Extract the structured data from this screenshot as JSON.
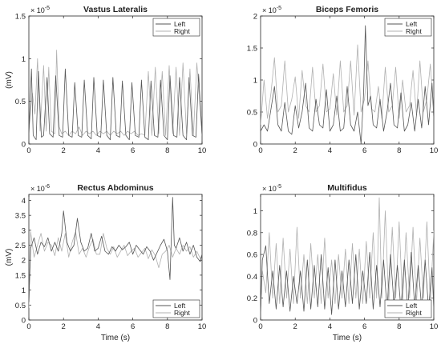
{
  "chart_data": [
    {
      "type": "line",
      "title": "Vastus Lateralis",
      "ylabel": "(mV)",
      "xlabel": "",
      "multiplier": "× 10",
      "exponent": "-5",
      "xlim": [
        0,
        10
      ],
      "ylim": [
        0,
        1.5
      ],
      "xticks": [
        "0",
        "2",
        "4",
        "6",
        "8",
        "10"
      ],
      "yticks": [
        "0",
        "0.5",
        "1",
        "1.5"
      ],
      "legend_position": "top-right",
      "series": [
        {
          "name": "Left",
          "color": "#555555",
          "x": [
            0,
            0.15,
            0.25,
            0.42,
            0.55,
            0.72,
            0.85,
            1.05,
            1.2,
            1.4,
            1.55,
            1.75,
            1.95,
            2.1,
            2.3,
            2.5,
            2.65,
            2.85,
            3.05,
            3.2,
            3.4,
            3.6,
            3.75,
            3.95,
            4.15,
            4.3,
            4.5,
            4.7,
            4.85,
            5.05,
            5.25,
            5.4,
            5.6,
            5.8,
            5.95,
            6.15,
            6.35,
            6.5,
            6.7,
            6.9,
            7.05,
            7.25,
            7.45,
            7.6,
            7.8,
            8.0,
            8.15,
            8.35,
            8.55,
            8.7,
            8.9,
            9.1,
            9.25,
            9.45,
            9.65,
            9.8,
            10
          ],
          "y": [
            0.1,
            0.88,
            0.1,
            0.05,
            0.85,
            0.08,
            0.1,
            0.78,
            0.12,
            0.08,
            0.8,
            0.1,
            0.08,
            0.88,
            0.1,
            0.08,
            0.72,
            0.1,
            0.08,
            0.75,
            0.1,
            0.06,
            0.78,
            0.1,
            0.08,
            0.75,
            0.1,
            0.05,
            0.78,
            0.1,
            0.08,
            0.74,
            0.1,
            0.05,
            0.72,
            0.1,
            0.08,
            0.75,
            0.08,
            0.05,
            0.74,
            0.1,
            0.08,
            0.75,
            0.1,
            0.05,
            0.8,
            0.1,
            0.08,
            0.78,
            0.1,
            0.05,
            0.78,
            0.1,
            0.08,
            0.82,
            0.1
          ]
        },
        {
          "name": "Right",
          "color": "#b0b0b0",
          "x": [
            0,
            0.2,
            0.35,
            0.5,
            0.65,
            0.85,
            1.0,
            1.15,
            1.3,
            1.5,
            1.6,
            1.75,
            1.9,
            2.1,
            2.3,
            2.5,
            2.7,
            2.9,
            3.1,
            3.3,
            3.5,
            3.7,
            3.9,
            4.1,
            4.3,
            4.5,
            4.7,
            4.9,
            5.1,
            5.3,
            5.5,
            5.7,
            5.9,
            6.1,
            6.3,
            6.5,
            6.7,
            6.9,
            7.1,
            7.3,
            7.5,
            7.7,
            7.9,
            8.1,
            8.3,
            8.5,
            8.7,
            8.9,
            9.1,
            9.3,
            9.5,
            9.7,
            10
          ],
          "y": [
            0.15,
            0.6,
            0.35,
            1.0,
            0.15,
            0.92,
            0.15,
            0.9,
            0.15,
            0.12,
            1.1,
            0.2,
            0.12,
            0.15,
            0.1,
            0.15,
            0.12,
            0.2,
            0.1,
            0.15,
            0.12,
            0.15,
            0.1,
            0.15,
            0.12,
            0.15,
            0.1,
            0.15,
            0.12,
            0.15,
            0.1,
            0.15,
            0.12,
            0.15,
            0.1,
            0.12,
            0.1,
            0.85,
            0.1,
            0.9,
            0.12,
            0.85,
            0.1,
            0.92,
            0.12,
            0.9,
            0.1,
            0.95,
            0.12,
            0.88,
            0.1,
            0.95,
            0.1
          ]
        }
      ]
    },
    {
      "type": "line",
      "title": "Biceps Femoris",
      "ylabel": "",
      "xlabel": "",
      "multiplier": "× 10",
      "exponent": "-5",
      "xlim": [
        0,
        10
      ],
      "ylim": [
        0,
        2
      ],
      "xticks": [
        "0",
        "2",
        "4",
        "6",
        "8",
        "10"
      ],
      "yticks": [
        "0",
        "0.5",
        "1",
        "1.5",
        "2"
      ],
      "legend_position": "top-right",
      "series": [
        {
          "name": "Left",
          "color": "#555555",
          "x": [
            0,
            0.2,
            0.4,
            0.6,
            0.8,
            1.0,
            1.2,
            1.4,
            1.6,
            1.8,
            2.0,
            2.2,
            2.4,
            2.6,
            2.8,
            3.0,
            3.2,
            3.4,
            3.6,
            3.8,
            4.0,
            4.2,
            4.4,
            4.6,
            4.8,
            5.0,
            5.2,
            5.4,
            5.6,
            5.8,
            5.95,
            6.05,
            6.2,
            6.35,
            6.5,
            6.7,
            6.9,
            7.1,
            7.3,
            7.5,
            7.7,
            7.9,
            8.1,
            8.3,
            8.5,
            8.7,
            8.9,
            9.1,
            9.3,
            9.5,
            9.7,
            9.9,
            10
          ],
          "y": [
            0.2,
            0.3,
            0.2,
            0.55,
            0.9,
            0.3,
            0.2,
            0.65,
            0.2,
            0.15,
            0.6,
            0.25,
            0.5,
            0.95,
            0.25,
            0.2,
            0.7,
            0.3,
            0.25,
            0.85,
            0.2,
            0.3,
            0.75,
            0.2,
            0.25,
            0.9,
            0.3,
            0.2,
            0.5,
            0.0,
            0.8,
            1.85,
            0.6,
            0.75,
            0.3,
            0.25,
            0.7,
            0.2,
            0.5,
            0.95,
            0.3,
            0.25,
            0.8,
            0.2,
            0.3,
            0.65,
            0.2,
            0.7,
            0.25,
            0.9,
            0.3,
            0.95,
            0.4
          ]
        },
        {
          "name": "Right",
          "color": "#b0b0b0",
          "x": [
            0,
            0.2,
            0.4,
            0.6,
            0.8,
            1.0,
            1.2,
            1.4,
            1.6,
            1.8,
            2.0,
            2.2,
            2.4,
            2.6,
            2.8,
            3.0,
            3.2,
            3.4,
            3.6,
            3.8,
            4.0,
            4.2,
            4.4,
            4.6,
            4.8,
            5.0,
            5.2,
            5.4,
            5.6,
            5.8,
            6.0,
            6.2,
            6.4,
            6.6,
            6.8,
            7.0,
            7.2,
            7.4,
            7.6,
            7.8,
            8.0,
            8.2,
            8.4,
            8.6,
            8.8,
            9.0,
            9.2,
            9.4,
            9.6,
            9.8,
            10
          ],
          "y": [
            0.3,
            1.0,
            0.4,
            0.8,
            1.35,
            0.5,
            0.6,
            1.3,
            0.5,
            0.7,
            1.05,
            0.4,
            1.15,
            0.6,
            0.5,
            1.2,
            0.5,
            0.6,
            1.25,
            0.5,
            0.55,
            1.1,
            0.45,
            1.3,
            0.5,
            0.6,
            1.3,
            0.45,
            1.55,
            0.5,
            0.7,
            1.3,
            0.55,
            0.5,
            0.9,
            0.4,
            1.2,
            0.5,
            0.6,
            1.2,
            0.4,
            1.0,
            0.5,
            0.6,
            1.15,
            0.45,
            1.3,
            0.5,
            0.7,
            1.25,
            0.5
          ]
        }
      ]
    },
    {
      "type": "line",
      "title": "Rectus Abdominus",
      "ylabel": "(mV)",
      "xlabel": "Time (s)",
      "multiplier": "× 10",
      "exponent": "-6",
      "xlim": [
        0,
        10
      ],
      "ylim": [
        0,
        4.2
      ],
      "xticks": [
        "0",
        "2",
        "4",
        "6",
        "8",
        "10"
      ],
      "yticks": [
        "0",
        "0.5",
        "1",
        "1.5",
        "2",
        "2.5",
        "3",
        "3.5",
        "4"
      ],
      "legend_position": "bottom-right",
      "series": [
        {
          "name": "Left",
          "color": "#555555",
          "x": [
            0,
            0.1,
            0.3,
            0.5,
            0.7,
            0.9,
            1.1,
            1.3,
            1.5,
            1.7,
            1.9,
            2.0,
            2.2,
            2.4,
            2.6,
            2.8,
            3.0,
            3.2,
            3.4,
            3.6,
            3.8,
            4.0,
            4.2,
            4.4,
            4.6,
            4.8,
            5.0,
            5.2,
            5.4,
            5.6,
            5.8,
            6.0,
            6.2,
            6.4,
            6.6,
            6.8,
            7.0,
            7.2,
            7.4,
            7.6,
            7.8,
            8.0,
            8.15,
            8.3,
            8.4,
            8.5,
            8.7,
            8.9,
            9.1,
            9.3,
            9.5,
            9.7,
            9.9,
            10
          ],
          "y": [
            0.6,
            2.4,
            2.75,
            2.2,
            2.6,
            2.45,
            2.75,
            2.3,
            2.6,
            2.3,
            2.9,
            3.65,
            2.6,
            2.3,
            2.5,
            3.4,
            2.6,
            2.3,
            2.4,
            2.9,
            2.3,
            2.4,
            2.8,
            2.3,
            2.2,
            2.45,
            2.3,
            2.5,
            2.35,
            2.45,
            2.6,
            2.2,
            2.5,
            2.35,
            2.2,
            2.45,
            2.3,
            2.0,
            2.25,
            2.5,
            2.7,
            2.3,
            1.35,
            4.1,
            2.5,
            2.4,
            2.75,
            2.3,
            2.6,
            2.2,
            2.5,
            2.1,
            1.95,
            2.2
          ]
        },
        {
          "name": "Right",
          "color": "#b0b0b0",
          "x": [
            0,
            0.1,
            0.3,
            0.5,
            0.7,
            0.9,
            1.1,
            1.3,
            1.5,
            1.7,
            1.9,
            2.1,
            2.3,
            2.5,
            2.7,
            2.9,
            3.1,
            3.3,
            3.5,
            3.7,
            3.9,
            4.1,
            4.3,
            4.5,
            4.7,
            4.9,
            5.1,
            5.3,
            5.5,
            5.7,
            5.9,
            6.1,
            6.3,
            6.5,
            6.7,
            6.9,
            7.1,
            7.3,
            7.5,
            7.7,
            7.9,
            8.1,
            8.3,
            8.5,
            8.7,
            8.9,
            9.1,
            9.3,
            9.5,
            9.7,
            9.9,
            10
          ],
          "y": [
            0.4,
            2.95,
            2.1,
            2.5,
            2.9,
            2.3,
            2.6,
            2.5,
            2.15,
            2.75,
            2.3,
            2.9,
            2.1,
            2.6,
            2.95,
            2.2,
            2.4,
            2.1,
            2.45,
            2.7,
            2.2,
            2.2,
            2.9,
            2.4,
            2.2,
            2.45,
            2.1,
            2.3,
            2.5,
            2.15,
            2.3,
            2.4,
            2.1,
            2.25,
            2.4,
            2.05,
            2.35,
            2.15,
            1.75,
            2.2,
            2.3,
            2.5,
            2.1,
            2.4,
            2.2,
            2.5,
            2.3,
            2.45,
            2.1,
            2.3,
            2.05,
            2.2
          ]
        }
      ]
    },
    {
      "type": "line",
      "title": "Multifidus",
      "ylabel": "",
      "xlabel": "Time (s)",
      "multiplier": "× 10",
      "exponent": "-5",
      "xlim": [
        0,
        10
      ],
      "ylim": [
        0,
        1.15
      ],
      "xticks": [
        "0",
        "2",
        "4",
        "6",
        "8",
        "10"
      ],
      "yticks": [
        "0",
        "0.2",
        "0.4",
        "0.6",
        "0.8",
        "1"
      ],
      "legend_position": "bottom-right",
      "series": [
        {
          "name": "Left",
          "color": "#555555",
          "x": [
            0,
            0.1,
            0.3,
            0.5,
            0.7,
            0.9,
            1.1,
            1.3,
            1.5,
            1.7,
            1.9,
            2.1,
            2.3,
            2.5,
            2.7,
            2.9,
            3.1,
            3.3,
            3.5,
            3.7,
            3.9,
            4.1,
            4.3,
            4.5,
            4.7,
            4.9,
            5.1,
            5.3,
            5.5,
            5.7,
            5.9,
            6.1,
            6.3,
            6.5,
            6.7,
            6.9,
            7.1,
            7.3,
            7.5,
            7.7,
            7.9,
            8.1,
            8.3,
            8.5,
            8.7,
            8.9,
            9.1,
            9.3,
            9.5,
            9.7,
            9.9,
            10
          ],
          "y": [
            0.05,
            0.55,
            0.68,
            0.15,
            0.45,
            0.1,
            0.5,
            0.12,
            0.45,
            0.08,
            0.4,
            0.15,
            0.45,
            0.08,
            0.55,
            0.1,
            0.5,
            0.12,
            0.6,
            0.1,
            0.48,
            0.05,
            0.55,
            0.1,
            0.45,
            0.12,
            0.55,
            0.15,
            0.6,
            0.1,
            0.45,
            0.15,
            0.62,
            0.1,
            0.5,
            0.12,
            0.55,
            0.1,
            0.6,
            0.15,
            0.5,
            0.1,
            0.55,
            0.1,
            0.62,
            0.12,
            0.5,
            0.1,
            0.55,
            0.1,
            0.48,
            0.1
          ]
        },
        {
          "name": "Right",
          "color": "#b0b0b0",
          "x": [
            0,
            0.1,
            0.3,
            0.5,
            0.7,
            0.9,
            1.1,
            1.3,
            1.5,
            1.7,
            1.9,
            2.1,
            2.3,
            2.5,
            2.7,
            2.9,
            3.1,
            3.3,
            3.5,
            3.7,
            3.9,
            4.1,
            4.3,
            4.5,
            4.7,
            4.9,
            5.1,
            5.3,
            5.5,
            5.7,
            5.9,
            6.1,
            6.3,
            6.5,
            6.7,
            6.85,
            7.0,
            7.2,
            7.4,
            7.6,
            7.8,
            8.0,
            8.2,
            8.4,
            8.6,
            8.8,
            9.0,
            9.2,
            9.4,
            9.6,
            9.8,
            10
          ],
          "y": [
            0.1,
            0.45,
            0.25,
            0.8,
            0.2,
            0.7,
            0.15,
            0.75,
            0.2,
            0.65,
            0.15,
            0.85,
            0.2,
            0.6,
            0.15,
            0.7,
            0.2,
            0.6,
            0.15,
            0.75,
            0.2,
            0.55,
            0.15,
            0.6,
            0.2,
            0.65,
            0.15,
            0.7,
            0.2,
            0.65,
            0.15,
            0.72,
            0.2,
            0.8,
            0.2,
            1.12,
            0.2,
            1.0,
            0.15,
            0.85,
            0.2,
            0.9,
            0.15,
            0.8,
            0.2,
            0.85,
            0.15,
            0.75,
            0.2,
            0.9,
            0.15,
            0.82
          ]
        }
      ]
    }
  ]
}
